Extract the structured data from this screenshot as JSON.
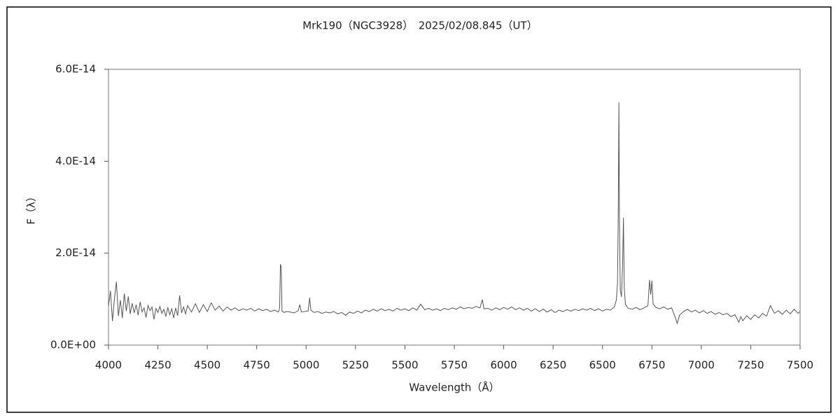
{
  "chart_data": {
    "type": "line",
    "title": "Mrk190（NGC3928）　2025/02/08.845（UT）",
    "xlabel": "Wavelength（Å）",
    "ylabel": "F（λ）",
    "color": "#555555",
    "xlim": [
      4000,
      7500
    ],
    "xticks": [
      4000,
      4250,
      4500,
      4750,
      5000,
      5250,
      5500,
      5750,
      6000,
      6250,
      6500,
      6750,
      7000,
      7250,
      7500
    ],
    "ylim": [
      0,
      6e-14
    ],
    "yticks": [
      {
        "value": 0,
        "label": "0.0E+00"
      },
      {
        "value": 2e-14,
        "label": "2.0E-14"
      },
      {
        "value": 4e-14,
        "label": "4.0E-14"
      },
      {
        "value": 6e-14,
        "label": "6.0E-14"
      }
    ],
    "grid": false,
    "x": [
      4000,
      4010,
      4020,
      4030,
      4040,
      4050,
      4060,
      4070,
      4080,
      4090,
      4100,
      4110,
      4120,
      4130,
      4140,
      4150,
      4160,
      4170,
      4180,
      4190,
      4200,
      4210,
      4220,
      4230,
      4240,
      4250,
      4260,
      4270,
      4280,
      4290,
      4300,
      4310,
      4320,
      4330,
      4340,
      4350,
      4360,
      4370,
      4380,
      4390,
      4400,
      4420,
      4440,
      4460,
      4480,
      4500,
      4520,
      4540,
      4560,
      4580,
      4600,
      4620,
      4640,
      4660,
      4680,
      4700,
      4720,
      4740,
      4760,
      4780,
      4800,
      4820,
      4840,
      4860,
      4866,
      4870,
      4874,
      4878,
      4890,
      4900,
      4920,
      4940,
      4960,
      4968,
      4976,
      4990,
      5010,
      5018,
      5024,
      5040,
      5060,
      5080,
      5100,
      5120,
      5140,
      5160,
      5180,
      5200,
      5220,
      5240,
      5260,
      5280,
      5300,
      5320,
      5340,
      5360,
      5380,
      5400,
      5420,
      5440,
      5460,
      5480,
      5500,
      5520,
      5540,
      5560,
      5580,
      5600,
      5620,
      5640,
      5660,
      5680,
      5700,
      5720,
      5740,
      5760,
      5780,
      5800,
      5820,
      5840,
      5860,
      5880,
      5892,
      5900,
      5920,
      5940,
      5960,
      5980,
      6000,
      6020,
      6040,
      6060,
      6080,
      6100,
      6120,
      6140,
      6160,
      6180,
      6200,
      6220,
      6240,
      6260,
      6280,
      6300,
      6320,
      6340,
      6360,
      6380,
      6400,
      6420,
      6440,
      6460,
      6480,
      6500,
      6520,
      6540,
      6560,
      6570,
      6576,
      6580,
      6583,
      6586,
      6590,
      6596,
      6602,
      6606,
      6610,
      6616,
      6630,
      6650,
      6670,
      6690,
      6710,
      6730,
      6738,
      6744,
      6750,
      6756,
      6770,
      6790,
      6810,
      6830,
      6850,
      6870,
      6878,
      6890,
      6910,
      6930,
      6950,
      6970,
      6990,
      7010,
      7030,
      7050,
      7070,
      7090,
      7110,
      7130,
      7150,
      7170,
      7190,
      7200,
      7210,
      7230,
      7250,
      7270,
      7290,
      7310,
      7330,
      7350,
      7370,
      7390,
      7410,
      7430,
      7450,
      7470,
      7490,
      7500
    ],
    "values": [
      8.5e-15,
      1.18e-14,
      5.2e-15,
      1.01e-14,
      1.38e-14,
      6.3e-15,
      9.8e-15,
      5.9e-15,
      1.12e-14,
      7.4e-15,
      1.06e-14,
      6.8e-15,
      9.1e-15,
      7e-15,
      8.8e-15,
      6.5e-15,
      9.4e-15,
      7.2e-15,
      8.1e-15,
      6e-15,
      8.6e-15,
      7.5e-15,
      8.3e-15,
      5.6e-15,
      8e-15,
      7.1e-15,
      8.4e-15,
      6.9e-15,
      7.8e-15,
      6.2e-15,
      8.2e-15,
      6.6e-15,
      7.9e-15,
      5.9e-15,
      8.1e-15,
      6.4e-15,
      1.08e-14,
      7e-15,
      8.3e-15,
      6.8e-15,
      8.6e-15,
      7.2e-15,
      9e-15,
      7.1e-15,
      8.8e-15,
      7.3e-15,
      9.2e-15,
      7.6e-15,
      8.5e-15,
      7.4e-15,
      8.3e-15,
      7.6e-15,
      8.1e-15,
      7.5e-15,
      7.9e-15,
      7.6e-15,
      8e-15,
      7.4e-15,
      7.9e-15,
      7.5e-15,
      7.8e-15,
      7.3e-15,
      7.6e-15,
      7.2e-15,
      8e-15,
      1.76e-14,
      1.7e-14,
      7.4e-15,
      7.1e-15,
      7.3e-15,
      7.2e-15,
      7e-15,
      7.5e-15,
      8.8e-15,
      7.2e-15,
      7.3e-15,
      7.4e-15,
      1.03e-14,
      7.6e-15,
      7.1e-15,
      7.3e-15,
      6.9e-15,
      7.2e-15,
      7e-15,
      7.3e-15,
      6.8e-15,
      7.1e-15,
      6.5e-15,
      7.2e-15,
      6.9e-15,
      7.4e-15,
      7e-15,
      7.6e-15,
      7.3e-15,
      7.8e-15,
      7.4e-15,
      7.9e-15,
      7.5e-15,
      7.8e-15,
      7.4e-15,
      8e-15,
      7.6e-15,
      7.9e-15,
      7.5e-15,
      8.1e-15,
      7.6e-15,
      8.9e-15,
      7.7e-15,
      8e-15,
      7.6e-15,
      7.9e-15,
      7.5e-15,
      8e-15,
      7.7e-15,
      8.1e-15,
      7.8e-15,
      8.3e-15,
      7.9e-15,
      8.2e-15,
      8e-15,
      8.4e-15,
      8.1e-15,
      9.9e-15,
      7.9e-15,
      8e-15,
      7.6e-15,
      8.1e-15,
      7.7e-15,
      8.2e-15,
      7.8e-15,
      8.3e-15,
      7.7e-15,
      8.1e-15,
      7.6e-15,
      8e-15,
      7.4e-15,
      7.9e-15,
      7.3e-15,
      7.8e-15,
      7.2e-15,
      7.7e-15,
      7.1e-15,
      7.6e-15,
      7.3e-15,
      7.7e-15,
      7.4e-15,
      7.8e-15,
      7.5e-15,
      7.9e-15,
      7.6e-15,
      8e-15,
      7.5e-15,
      7.9e-15,
      7.4e-15,
      7.8e-15,
      7.6e-15,
      8.3e-15,
      9.8e-15,
      1.35e-14,
      2.98e-14,
      5.28e-14,
      2.6e-14,
      1.2e-14,
      1.05e-14,
      1.8e-14,
      2.77e-14,
      1.25e-14,
      8.9e-15,
      8e-15,
      7.8e-15,
      8.2e-15,
      7.7e-15,
      8.1e-15,
      8.6e-15,
      1.42e-14,
      1.1e-14,
      1.4e-14,
      9e-15,
      8.2e-15,
      7.9e-15,
      8.3e-15,
      7.8e-15,
      8.1e-15,
      5.8e-15,
      4.7e-15,
      6.5e-15,
      7.3e-15,
      7.8e-15,
      7.2e-15,
      7.6e-15,
      7e-15,
      7.5e-15,
      6.9e-15,
      7.3e-15,
      6.7e-15,
      7.1e-15,
      6.6e-15,
      6.9e-15,
      6.2e-15,
      6.6e-15,
      5e-15,
      6.2e-15,
      5.3e-15,
      6.4e-15,
      5.6e-15,
      6.6e-15,
      5.9e-15,
      6.9e-15,
      6.3e-15,
      8.6e-15,
      6.9e-15,
      7.5e-15,
      6.7e-15,
      7.6e-15,
      6.8e-15,
      7.8e-15,
      6.9e-15,
      7.3e-15
    ]
  }
}
